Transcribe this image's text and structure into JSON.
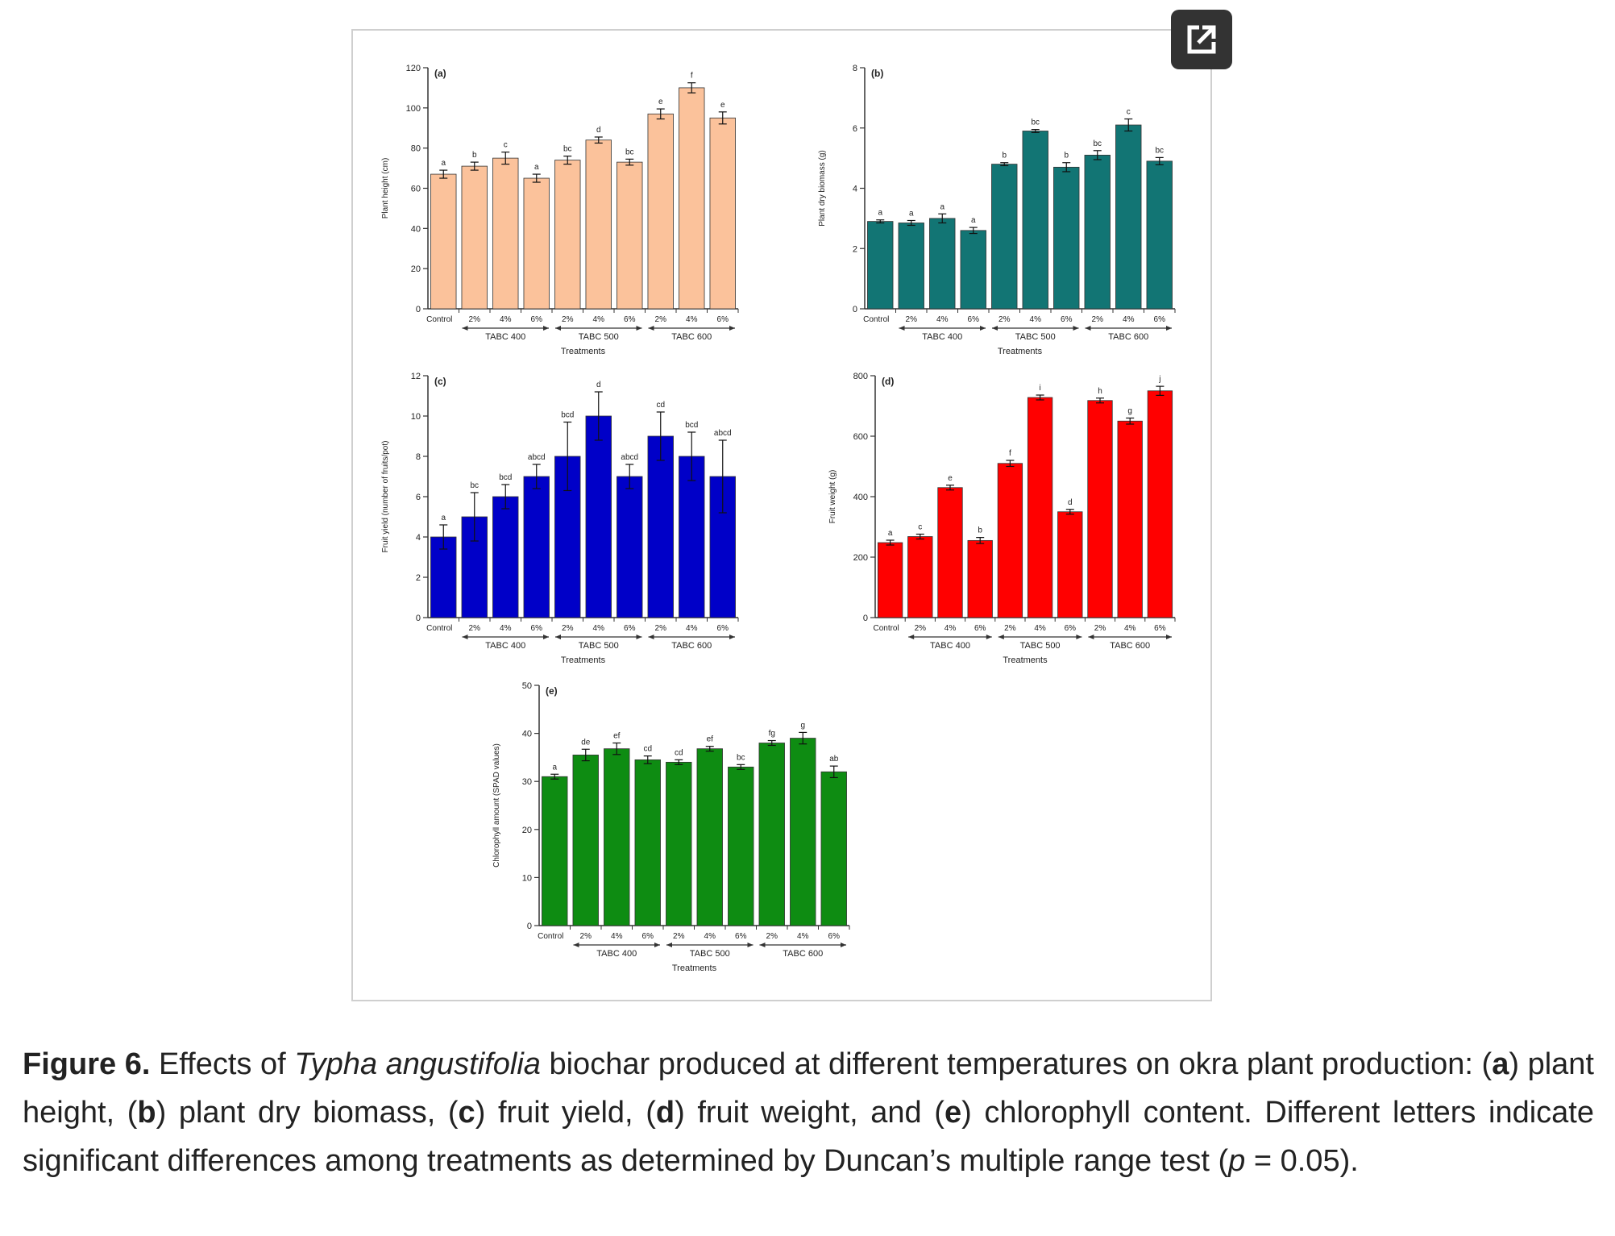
{
  "figure": {
    "expand_icon": "external-link-icon",
    "colors": {
      "a": "#FBC29B",
      "b": "#127574",
      "c": "#0000C8",
      "d": "#FF0000",
      "e": "#0E8C12"
    }
  },
  "caption": {
    "label": "Figure 6.",
    "text_1": " Effects of ",
    "species": "Typha angustifolia",
    "text_2": " biochar produced at different temperatures on okra plant production: (",
    "a": "a",
    "ta": ") plant height, (",
    "b": "b",
    "tb": ") plant dry biomass, (",
    "c": "c",
    "tc": ") fruit yield, (",
    "d": "d",
    "td": ") fruit weight, and (",
    "e": "e",
    "te": ") chlorophyll content. Different letters indicate significant differences among treatments as determined by Duncan’s multiple range test (",
    "p": "p",
    "tp": " = 0.05)."
  },
  "chart_data": [
    {
      "type": "bar",
      "panel": "(a)",
      "ylabel": "Plant height (cm)",
      "xlabel": "Treatments",
      "categories": [
        "Control",
        "2%",
        "4%",
        "6%",
        "2%",
        "4%",
        "6%",
        "2%",
        "4%",
        "6%"
      ],
      "groups": [
        "TABC 400",
        "TABC 500",
        "TABC 600"
      ],
      "values": [
        67,
        71,
        75,
        65,
        74,
        84,
        73,
        97,
        110,
        95
      ],
      "errors": [
        2,
        2,
        3,
        2,
        2,
        1.5,
        1.5,
        2.5,
        2.5,
        3
      ],
      "letters": [
        "a",
        "b",
        "c",
        "a",
        "bc",
        "d",
        "bc",
        "e",
        "f",
        "e"
      ],
      "ylim": [
        0,
        120
      ],
      "yticks": [
        0,
        20,
        40,
        60,
        80,
        100,
        120
      ]
    },
    {
      "type": "bar",
      "panel": "(b)",
      "ylabel": "Plant dry biomass (g)",
      "xlabel": "Treatments",
      "categories": [
        "Control",
        "2%",
        "4%",
        "6%",
        "2%",
        "4%",
        "6%",
        "2%",
        "4%",
        "6%"
      ],
      "groups": [
        "TABC 400",
        "TABC 500",
        "TABC 600"
      ],
      "values": [
        2.9,
        2.85,
        3.0,
        2.6,
        4.8,
        5.9,
        4.7,
        5.1,
        6.1,
        4.9
      ],
      "errors": [
        0.05,
        0.08,
        0.15,
        0.1,
        0.05,
        0.05,
        0.15,
        0.15,
        0.2,
        0.12
      ],
      "letters": [
        "a",
        "a",
        "a",
        "a",
        "b",
        "bc",
        "b",
        "bc",
        "c",
        "bc"
      ],
      "ylim": [
        0,
        8
      ],
      "yticks": [
        0,
        2,
        4,
        6,
        8
      ]
    },
    {
      "type": "bar",
      "panel": "(c)",
      "ylabel": "Fruit yield (number of fruits/pot)",
      "xlabel": "Treatments",
      "categories": [
        "Control",
        "2%",
        "4%",
        "6%",
        "2%",
        "4%",
        "6%",
        "2%",
        "4%",
        "6%"
      ],
      "groups": [
        "TABC 400",
        "TABC 500",
        "TABC 600"
      ],
      "values": [
        4,
        5,
        6,
        7,
        8,
        10,
        7,
        9,
        8,
        7
      ],
      "errors": [
        0.6,
        1.2,
        0.6,
        0.6,
        1.7,
        1.2,
        0.6,
        1.2,
        1.2,
        1.8
      ],
      "letters": [
        "a",
        "bc",
        "bcd",
        "abcd",
        "bcd",
        "d",
        "abcd",
        "cd",
        "bcd",
        "abcd"
      ],
      "ylim": [
        0,
        12
      ],
      "yticks": [
        0,
        2,
        4,
        6,
        8,
        10,
        12
      ]
    },
    {
      "type": "bar",
      "panel": "(d)",
      "ylabel": "Fruit weight (g)",
      "xlabel": "Treatments",
      "categories": [
        "Control",
        "2%",
        "4%",
        "6%",
        "2%",
        "4%",
        "6%",
        "2%",
        "4%",
        "6%"
      ],
      "groups": [
        "TABC 400",
        "TABC 500",
        "TABC 600"
      ],
      "values": [
        248,
        268,
        430,
        255,
        510,
        728,
        350,
        718,
        650,
        750
      ],
      "errors": [
        8,
        8,
        8,
        10,
        10,
        8,
        8,
        8,
        10,
        15
      ],
      "letters": [
        "a",
        "c",
        "e",
        "b",
        "f",
        "i",
        "d",
        "h",
        "g",
        "j"
      ],
      "ylim": [
        0,
        800
      ],
      "yticks": [
        0,
        200,
        400,
        600,
        800
      ]
    },
    {
      "type": "bar",
      "panel": "(e)",
      "ylabel": "Chlorophyll amount (SPAD values)",
      "xlabel": "Treatments",
      "categories": [
        "Control",
        "2%",
        "4%",
        "6%",
        "2%",
        "4%",
        "6%",
        "2%",
        "4%",
        "6%"
      ],
      "groups": [
        "TABC 400",
        "TABC 500",
        "TABC 600"
      ],
      "values": [
        31,
        35.5,
        36.8,
        34.5,
        34,
        36.8,
        33,
        38,
        39,
        32
      ],
      "errors": [
        0.5,
        1.2,
        1.2,
        0.8,
        0.5,
        0.5,
        0.5,
        0.5,
        1.2,
        1.2
      ],
      "letters": [
        "a",
        "de",
        "ef",
        "cd",
        "cd",
        "ef",
        "bc",
        "fg",
        "g",
        "ab"
      ],
      "ylim": [
        0,
        50
      ],
      "yticks": [
        0,
        10,
        20,
        30,
        40,
        50
      ]
    }
  ]
}
